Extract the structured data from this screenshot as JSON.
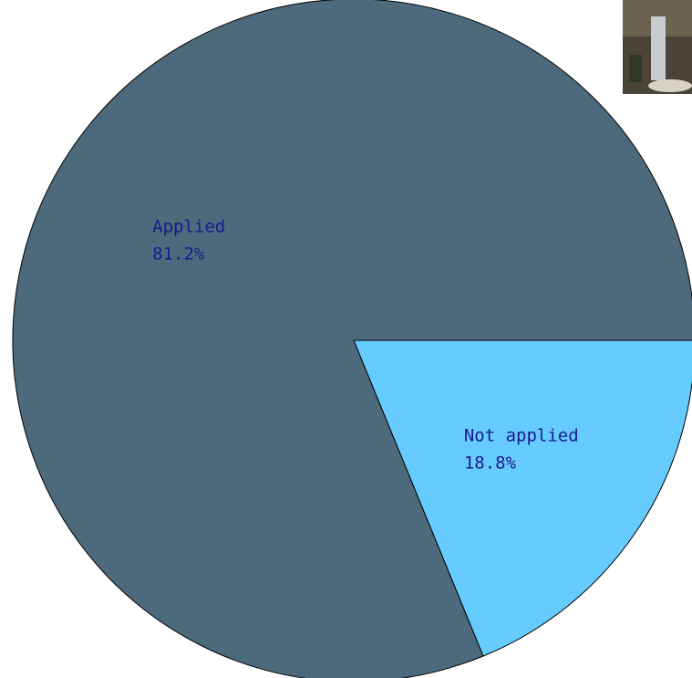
{
  "chart_data": {
    "type": "pie",
    "categories": [
      "Applied",
      "Not applied"
    ],
    "values": [
      81.2,
      18.8
    ],
    "value_labels": [
      "81.2%",
      "18.8%"
    ],
    "colors": [
      "#4d6a7d",
      "#66ccff"
    ]
  }
}
